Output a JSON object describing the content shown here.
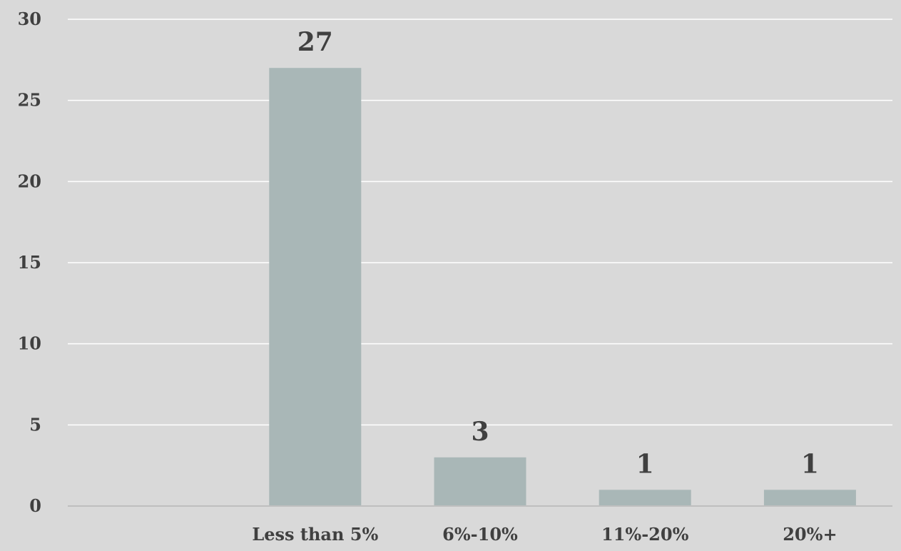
{
  "chart_data": {
    "type": "bar",
    "title": "",
    "xlabel": "",
    "ylabel": "",
    "categories": [
      "",
      "Less than 5%",
      "6%-10%",
      "11%-20%",
      "20%+"
    ],
    "values": [
      null,
      27,
      3,
      1,
      1
    ],
    "data_labels": [
      "",
      "27",
      "3",
      "1",
      "1"
    ],
    "ylim": [
      0,
      30
    ],
    "yticks": [
      0,
      5,
      10,
      15,
      20,
      25,
      30
    ],
    "ytick_labels": [
      "0",
      "5",
      "10",
      "15",
      "20",
      "25",
      "30"
    ],
    "grid": true,
    "legend": "none",
    "colors": {
      "background": "#d9d9d9",
      "bar": "#a9b7b7",
      "gridline": "#ffffff",
      "axis_line": "#bfbfbf",
      "text": "#404040"
    }
  }
}
